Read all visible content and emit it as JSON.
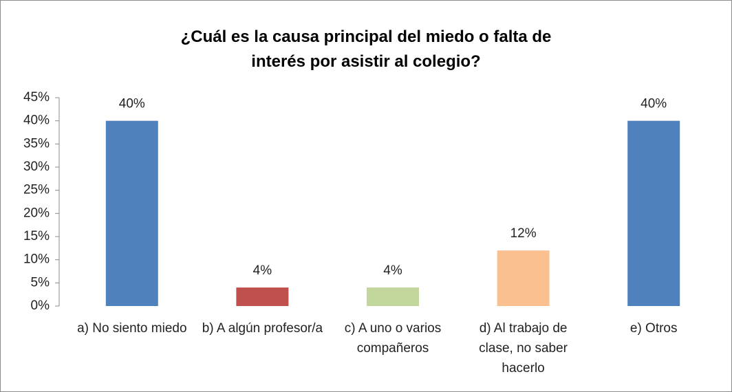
{
  "chart_data": {
    "type": "bar",
    "title": "¿Cuál es la causa principal del miedo o falta de interés por asistir al colegio?",
    "categories": [
      "a) No siento miedo",
      "b) A algún profesor/a",
      "c) A uno o varios compañeros",
      "d) Al trabajo de clase, no saber hacerlo",
      "e) Otros"
    ],
    "values": [
      40,
      4,
      4,
      12,
      40
    ],
    "value_labels": [
      "40%",
      "4%",
      "4%",
      "12%",
      "40%"
    ],
    "colors": [
      "#4f81bd",
      "#c0504d",
      "#c3d69b",
      "#fac090",
      "#4f81bd"
    ],
    "ylim": [
      0,
      45
    ],
    "yticks": [
      {
        "value": 0,
        "label": "0%"
      },
      {
        "value": 5,
        "label": "5%"
      },
      {
        "value": 10,
        "label": "10%"
      },
      {
        "value": 15,
        "label": "15%"
      },
      {
        "value": 20,
        "label": "20%"
      },
      {
        "value": 25,
        "label": "25%"
      },
      {
        "value": 30,
        "label": "30%"
      },
      {
        "value": 35,
        "label": "35%"
      },
      {
        "value": 40,
        "label": "40%"
      },
      {
        "value": 45,
        "label": "45%"
      }
    ]
  }
}
